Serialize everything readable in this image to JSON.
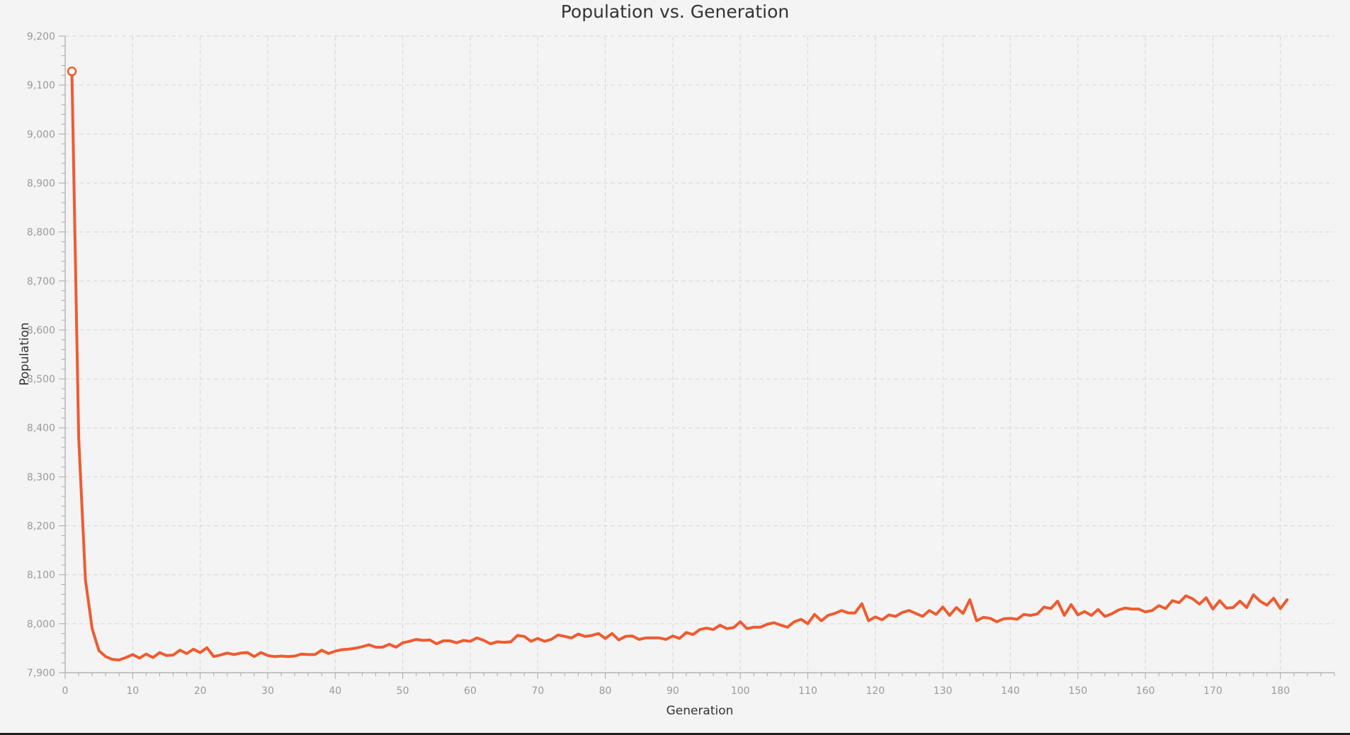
{
  "chart_data": {
    "type": "line",
    "title": "Population vs. Generation",
    "xlabel": "Generation",
    "ylabel": "Population",
    "xlim": [
      0,
      188
    ],
    "ylim": [
      7900,
      9200
    ],
    "xticks": [
      0,
      10,
      20,
      30,
      40,
      50,
      60,
      70,
      80,
      90,
      100,
      110,
      120,
      130,
      140,
      150,
      160,
      170,
      180
    ],
    "xtick_labels": [
      "0",
      "10",
      "20",
      "30",
      "40",
      "50",
      "60",
      "70",
      "80",
      "90",
      "100",
      "110",
      "120",
      "130",
      "140",
      "150",
      "160",
      "170",
      "180"
    ],
    "yticks": [
      7900,
      8000,
      8100,
      8200,
      8300,
      8400,
      8500,
      8600,
      8700,
      8800,
      8900,
      9000,
      9100,
      9200
    ],
    "ytick_labels": [
      "7,900",
      "8,000",
      "8,100",
      "8,200",
      "8,300",
      "8,400",
      "8,500",
      "8,600",
      "8,700",
      "8,800",
      "8,900",
      "9,000",
      "9,100",
      "9,200"
    ],
    "grid": true,
    "line_color": "#ef5b30",
    "series": [
      {
        "x": [
          1,
          2,
          3,
          4,
          5,
          6,
          7,
          8,
          9,
          10,
          11,
          12,
          13,
          14,
          15,
          16,
          17,
          18,
          19,
          20,
          21,
          22,
          23,
          24,
          25,
          26,
          27,
          28,
          29,
          30,
          31,
          32,
          33,
          34,
          35,
          36,
          37,
          38,
          39,
          40,
          41,
          42,
          43,
          44,
          45,
          46,
          47,
          48,
          49,
          50,
          51,
          52,
          53,
          54,
          55,
          56,
          57,
          58,
          59,
          60,
          61,
          62,
          63,
          64,
          65,
          66,
          67,
          68,
          69,
          70,
          71,
          72,
          73,
          74,
          75,
          76,
          77,
          78,
          79,
          80,
          81,
          82,
          83,
          84,
          85,
          86,
          87,
          88,
          89,
          90,
          91,
          92,
          93,
          94,
          95,
          96,
          97,
          98,
          99,
          100,
          101,
          102,
          103,
          104,
          105,
          106,
          107,
          108,
          109,
          110,
          111,
          112,
          113,
          114,
          115,
          116,
          117,
          118,
          119,
          120,
          121,
          122,
          123,
          124,
          125,
          126,
          127,
          128,
          129,
          130,
          131,
          132,
          133,
          134,
          135,
          136,
          137,
          138,
          139,
          140,
          141,
          142,
          143,
          144,
          145,
          146,
          147,
          148,
          149,
          150,
          151,
          152,
          153,
          154,
          155,
          156,
          157,
          158,
          159,
          160,
          161,
          162,
          163,
          164,
          165,
          166,
          167,
          168,
          169,
          170,
          171,
          172,
          173,
          174,
          175,
          176,
          177,
          178,
          179,
          180,
          181
        ],
        "y": [
          9128,
          8380,
          8090,
          7990,
          7945,
          7933,
          7927,
          7926,
          7931,
          7937,
          7930,
          7938,
          7931,
          7941,
          7935,
          7936,
          7946,
          7939,
          7948,
          7941,
          7951,
          7933,
          7936,
          7940,
          7937,
          7940,
          7941,
          7933,
          7941,
          7935,
          7933,
          7934,
          7933,
          7934,
          7938,
          7937,
          7937,
          7946,
          7939,
          7944,
          7947,
          7948,
          7950,
          7953,
          7957,
          7952,
          7952,
          7958,
          7952,
          7961,
          7964,
          7968,
          7966,
          7967,
          7959,
          7965,
          7965,
          7961,
          7966,
          7964,
          7971,
          7966,
          7959,
          7963,
          7962,
          7963,
          7976,
          7974,
          7964,
          7970,
          7964,
          7968,
          7977,
          7974,
          7971,
          7979,
          7974,
          7976,
          7980,
          7970,
          7980,
          7967,
          7974,
          7975,
          7968,
          7971,
          7971,
          7971,
          7968,
          7975,
          7970,
          7982,
          7978,
          7988,
          7991,
          7988,
          7997,
          7990,
          7992,
          8004,
          7990,
          7993,
          7993,
          7999,
          8002,
          7997,
          7993,
          8004,
          8009,
          8000,
          8019,
          8006,
          8017,
          8021,
          8027,
          8022,
          8022,
          8041,
          8006,
          8014,
          8008,
          8018,
          8015,
          8023,
          8027,
          8021,
          8015,
          8027,
          8019,
          8034,
          8017,
          8033,
          8021,
          8049,
          8006,
          8013,
          8011,
          8004,
          8010,
          8011,
          8009,
          8019,
          8017,
          8020,
          8034,
          8031,
          8046,
          8017,
          8039,
          8018,
          8025,
          8017,
          8029,
          8015,
          8020,
          8028,
          8032,
          8030,
          8030,
          8024,
          8027,
          8037,
          8031,
          8047,
          8043,
          8057,
          8051,
          8040,
          8053,
          8030,
          8047,
          8032,
          8033,
          8046,
          8033,
          8059,
          8046,
          8038,
          8052,
          8031,
          8049
        ]
      }
    ]
  }
}
